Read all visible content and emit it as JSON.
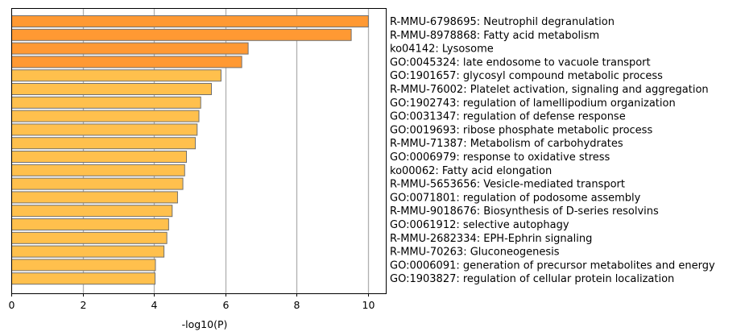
{
  "chart_data": {
    "type": "bar",
    "orientation": "horizontal",
    "title": "",
    "xlabel": "-log10(P)",
    "ylabel": "",
    "xlim": [
      0,
      10.5
    ],
    "xticks": [
      "0",
      "2",
      "4",
      "6",
      "8",
      "10"
    ],
    "grid": "vertical lines at x ticks",
    "categories": [
      "R-MMU-6798695: Neutrophil degranulation",
      "R-MMU-8978868: Fatty acid metabolism",
      "ko04142: Lysosome",
      "GO:0045324: late endosome to vacuole transport",
      "GO:1901657: glycosyl compound metabolic process",
      "R-MMU-76002: Platelet activation, signaling and aggregation",
      "GO:1902743: regulation of lamellipodium organization",
      "GO:0031347: regulation of defense response",
      "GO:0019693: ribose phosphate metabolic process",
      "R-MMU-71387: Metabolism of carbohydrates",
      "GO:0006979: response to oxidative stress",
      "ko00062: Fatty acid elongation",
      "R-MMU-5653656: Vesicle-mediated transport",
      "GO:0071801: regulation of podosome assembly",
      "R-MMU-9018676: Biosynthesis of D-series resolvins",
      "GO:0061912: selective autophagy",
      "R-MMU-2682334: EPH-Ephrin signaling",
      "R-MMU-70263: Gluconeogenesis",
      "GO:0006091: generation of precursor metabolites and energy",
      "GO:1903827: regulation of cellular protein localization"
    ],
    "values": [
      10.0,
      9.52,
      6.63,
      6.45,
      5.87,
      5.6,
      5.3,
      5.25,
      5.2,
      5.15,
      4.9,
      4.85,
      4.8,
      4.65,
      4.5,
      4.4,
      4.35,
      4.27,
      4.03,
      4.02
    ],
    "bar_colors": [
      "#FF9933",
      "#FF9933",
      "#FF9933",
      "#FF9933",
      "#FFC04D",
      "#FFC04D",
      "#FFC04D",
      "#FFC04D",
      "#FFC04D",
      "#FFC04D",
      "#FFC04D",
      "#FFC04D",
      "#FFC04D",
      "#FFC04D",
      "#FFC04D",
      "#FFC04D",
      "#FFC04D",
      "#FFC04D",
      "#FFC04D",
      "#FFC04D"
    ],
    "bar_edge_color": "#707070",
    "grid_color": "#b0b0b0"
  }
}
